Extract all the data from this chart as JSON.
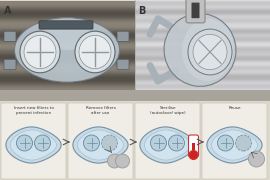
{
  "panel_A_label": "A",
  "panel_B_label": "B",
  "photo_bg_A": "#a09888",
  "photo_bg_A_light": "#c8bfb0",
  "photo_bg_B": "#d0d0d0",
  "photo_bg_B_light": "#e8e8e8",
  "bottom_bg": "#d8d4c8",
  "bottom_strip_color": "#b0aca0",
  "mask_body_color": "#c8d4dc",
  "mask_edge_color": "#8899aa",
  "mask_inner_color": "#b8c8d4",
  "filter_bg": "#e0e8ec",
  "filter_edge": "#7a9aaa",
  "cross_color": "#88a8b8",
  "diagram_bg": "#c8dce8",
  "diagram_edge": "#7090a8",
  "arrow_color": "#555555",
  "text_color": "#333333",
  "panel_border": "#cccccc",
  "step_labels": [
    "Insert new filters to\nprevent infection",
    "Remove filters\nafter use",
    "Sterilise\n(autoclave/ wipe)",
    "Reuse"
  ],
  "circle_filter_color": "#c0c0c0",
  "circle_filter_edge": "#999999",
  "therm_red": "#cc2222",
  "therm_outline": "#cc3333",
  "white": "#ffffff",
  "divider_color": "#aaaaaa"
}
